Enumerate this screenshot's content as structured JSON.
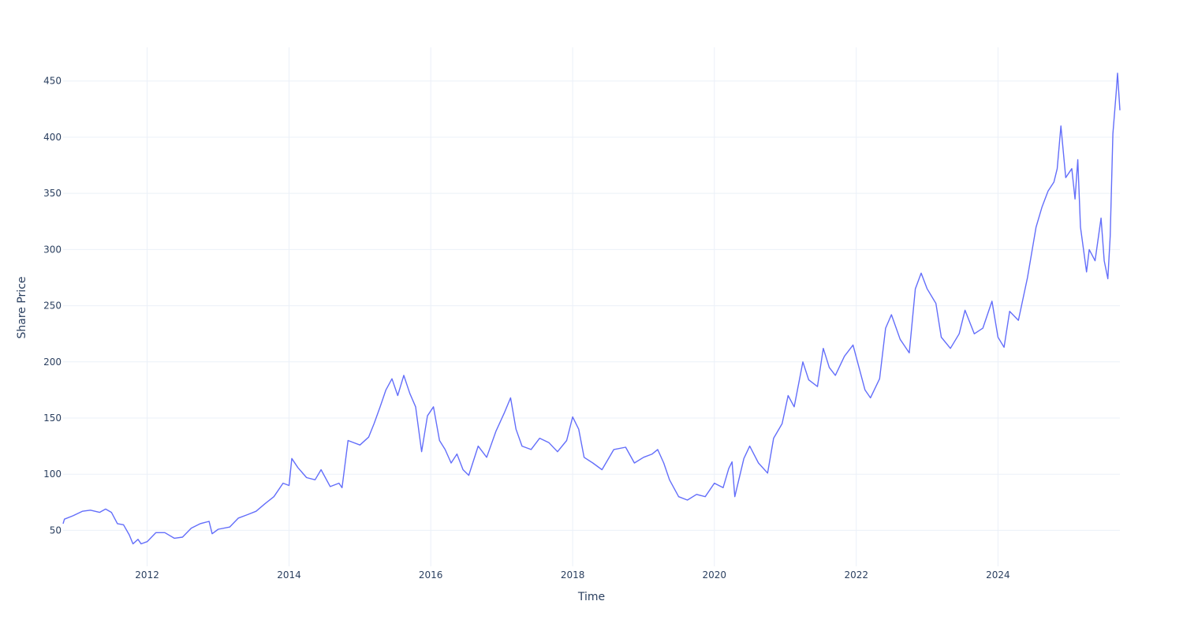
{
  "chart_data": {
    "type": "line",
    "title": "",
    "xlabel": "Time",
    "ylabel": "Share Price",
    "xlim": [
      "2010-10-25",
      "2025-09-20"
    ],
    "ylim": [
      18,
      480
    ],
    "x_ticks": [
      "2012",
      "2014",
      "2016",
      "2018",
      "2020",
      "2022",
      "2024"
    ],
    "y_ticks": [
      "50",
      "100",
      "150",
      "200",
      "250",
      "300",
      "350",
      "400",
      "450"
    ],
    "grid": true,
    "legend": "none",
    "colors": {
      "line": "#636efa",
      "grid": "#ebf0f8",
      "text": "#2a3f5f"
    },
    "series": [
      {
        "points": [
          [
            "2010-10-25",
            56
          ],
          [
            "2010-11-01",
            60
          ],
          [
            "2010-12-15",
            63
          ],
          [
            "2011-02-01",
            67
          ],
          [
            "2011-03-15",
            68
          ],
          [
            "2011-05-01",
            66
          ],
          [
            "2011-06-01",
            69
          ],
          [
            "2011-07-01",
            66
          ],
          [
            "2011-08-01",
            56
          ],
          [
            "2011-09-01",
            55
          ],
          [
            "2011-10-01",
            46
          ],
          [
            "2011-10-20",
            38
          ],
          [
            "2011-11-15",
            42
          ],
          [
            "2011-12-01",
            38
          ],
          [
            "2012-01-01",
            40
          ],
          [
            "2012-02-15",
            48
          ],
          [
            "2012-04-01",
            48
          ],
          [
            "2012-05-20",
            43
          ],
          [
            "2012-07-01",
            44
          ],
          [
            "2012-08-15",
            52
          ],
          [
            "2012-10-01",
            56
          ],
          [
            "2012-11-15",
            58
          ],
          [
            "2012-12-01",
            47
          ],
          [
            "2013-01-01",
            51
          ],
          [
            "2013-03-01",
            53
          ],
          [
            "2013-04-15",
            61
          ],
          [
            "2013-06-01",
            64
          ],
          [
            "2013-07-15",
            67
          ],
          [
            "2013-09-01",
            74
          ],
          [
            "2013-10-15",
            80
          ],
          [
            "2013-12-01",
            92
          ],
          [
            "2014-01-01",
            90
          ],
          [
            "2014-01-15",
            114
          ],
          [
            "2014-02-15",
            106
          ],
          [
            "2014-04-01",
            97
          ],
          [
            "2014-05-15",
            95
          ],
          [
            "2014-06-15",
            104
          ],
          [
            "2014-08-01",
            89
          ],
          [
            "2014-09-15",
            92
          ],
          [
            "2014-10-01",
            88
          ],
          [
            "2014-11-01",
            130
          ],
          [
            "2015-01-01",
            126
          ],
          [
            "2015-02-15",
            133
          ],
          [
            "2015-03-15",
            145
          ],
          [
            "2015-04-15",
            160
          ],
          [
            "2015-05-15",
            175
          ],
          [
            "2015-06-15",
            185
          ],
          [
            "2015-07-15",
            170
          ],
          [
            "2015-08-15",
            188
          ],
          [
            "2015-09-15",
            172
          ],
          [
            "2015-10-15",
            160
          ],
          [
            "2015-11-15",
            120
          ],
          [
            "2015-12-15",
            152
          ],
          [
            "2016-01-15",
            160
          ],
          [
            "2016-02-15",
            130
          ],
          [
            "2016-03-15",
            122
          ],
          [
            "2016-04-15",
            110
          ],
          [
            "2016-05-15",
            118
          ],
          [
            "2016-06-15",
            104
          ],
          [
            "2016-07-15",
            99
          ],
          [
            "2016-09-01",
            125
          ],
          [
            "2016-10-15",
            115
          ],
          [
            "2016-12-01",
            138
          ],
          [
            "2017-01-15",
            155
          ],
          [
            "2017-02-15",
            168
          ],
          [
            "2017-03-15",
            140
          ],
          [
            "2017-04-15",
            125
          ],
          [
            "2017-06-01",
            122
          ],
          [
            "2017-07-15",
            132
          ],
          [
            "2017-09-01",
            128
          ],
          [
            "2017-10-15",
            120
          ],
          [
            "2017-12-01",
            130
          ],
          [
            "2018-01-01",
            151
          ],
          [
            "2018-02-01",
            140
          ],
          [
            "2018-03-01",
            115
          ],
          [
            "2018-04-15",
            110
          ],
          [
            "2018-06-01",
            104
          ],
          [
            "2018-08-01",
            122
          ],
          [
            "2018-10-01",
            124
          ],
          [
            "2018-11-15",
            110
          ],
          [
            "2019-01-01",
            115
          ],
          [
            "2019-02-15",
            118
          ],
          [
            "2019-03-15",
            122
          ],
          [
            "2019-04-15",
            110
          ],
          [
            "2019-05-15",
            95
          ],
          [
            "2019-07-01",
            80
          ],
          [
            "2019-08-15",
            77
          ],
          [
            "2019-10-01",
            82
          ],
          [
            "2019-11-15",
            80
          ],
          [
            "2020-01-01",
            92
          ],
          [
            "2020-02-15",
            88
          ],
          [
            "2020-03-15",
            105
          ],
          [
            "2020-04-01",
            111
          ],
          [
            "2020-04-15",
            80
          ],
          [
            "2020-06-01",
            114
          ],
          [
            "2020-07-01",
            125
          ],
          [
            "2020-08-15",
            110
          ],
          [
            "2020-10-01",
            101
          ],
          [
            "2020-11-01",
            132
          ],
          [
            "2020-12-15",
            145
          ],
          [
            "2021-01-15",
            170
          ],
          [
            "2021-02-15",
            160
          ],
          [
            "2021-04-01",
            200
          ],
          [
            "2021-05-01",
            184
          ],
          [
            "2021-06-15",
            178
          ],
          [
            "2021-07-15",
            212
          ],
          [
            "2021-08-15",
            195
          ],
          [
            "2021-09-15",
            188
          ],
          [
            "2021-11-01",
            205
          ],
          [
            "2021-12-15",
            215
          ],
          [
            "2022-01-15",
            195
          ],
          [
            "2022-02-15",
            175
          ],
          [
            "2022-03-15",
            168
          ],
          [
            "2022-05-01",
            185
          ],
          [
            "2022-06-01",
            230
          ],
          [
            "2022-07-01",
            242
          ],
          [
            "2022-08-15",
            220
          ],
          [
            "2022-10-01",
            208
          ],
          [
            "2022-11-01",
            265
          ],
          [
            "2022-12-01",
            279
          ],
          [
            "2023-01-01",
            265
          ],
          [
            "2023-02-15",
            252
          ],
          [
            "2023-03-15",
            222
          ],
          [
            "2023-05-01",
            212
          ],
          [
            "2023-06-15",
            225
          ],
          [
            "2023-07-15",
            246
          ],
          [
            "2023-09-01",
            225
          ],
          [
            "2023-10-15",
            230
          ],
          [
            "2023-12-01",
            254
          ],
          [
            "2024-01-01",
            222
          ],
          [
            "2024-02-01",
            213
          ],
          [
            "2024-03-01",
            245
          ],
          [
            "2024-04-15",
            237
          ],
          [
            "2024-06-01",
            275
          ],
          [
            "2024-07-15",
            320
          ],
          [
            "2024-08-15",
            338
          ],
          [
            "2024-09-15",
            352
          ],
          [
            "2024-10-15",
            360
          ],
          [
            "2024-11-01",
            372
          ],
          [
            "2024-11-20",
            410
          ],
          [
            "2024-12-15",
            364
          ],
          [
            "2025-01-15",
            372
          ],
          [
            "2025-02-01",
            345
          ],
          [
            "2025-02-15",
            380
          ],
          [
            "2025-03-01",
            320
          ],
          [
            "2025-04-01",
            280
          ],
          [
            "2025-04-15",
            300
          ],
          [
            "2025-05-15",
            290
          ],
          [
            "2025-06-15",
            328
          ],
          [
            "2025-07-01",
            290
          ],
          [
            "2025-07-20",
            274
          ],
          [
            "2025-08-01",
            312
          ],
          [
            "2025-08-15",
            403
          ],
          [
            "2025-09-01",
            440
          ],
          [
            "2025-09-08",
            457
          ],
          [
            "2025-09-20",
            424
          ]
        ]
      }
    ]
  }
}
